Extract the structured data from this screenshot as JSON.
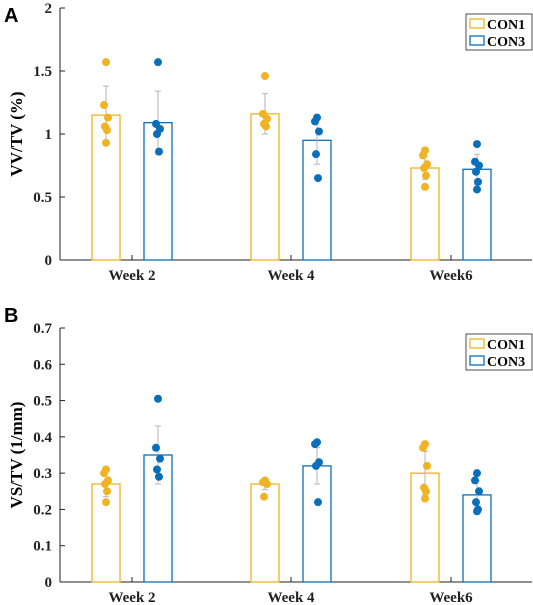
{
  "chart_data": [
    {
      "panel": "A",
      "type": "bar",
      "ylabel": "VV/TV (%)",
      "xlabel": "",
      "title": "",
      "categories": [
        "Week 2",
        "Week 4",
        "Week6"
      ],
      "ylim": [
        0,
        2
      ],
      "yticks": [
        0,
        0.5,
        1,
        1.5,
        2
      ],
      "ytick_labels": [
        "0",
        "0.5",
        "1",
        "1.5",
        "2"
      ],
      "legend_position": "top-right",
      "series": [
        {
          "name": "CON1",
          "color": "#F0B323",
          "values": [
            1.15,
            1.16,
            0.73
          ],
          "errors": [
            0.23,
            0.16,
            0.09
          ],
          "points": [
            [
              1.57,
              1.23,
              1.13,
              1.06,
              1.03,
              0.93
            ],
            [
              1.46,
              1.16,
              1.12,
              1.08,
              1.06
            ],
            [
              0.87,
              0.83,
              0.76,
              0.73,
              0.67,
              0.58
            ]
          ]
        },
        {
          "name": "CON3",
          "color": "#0A6FBB",
          "values": [
            1.09,
            0.95,
            0.72
          ],
          "errors": [
            0.25,
            0.19,
            0.12
          ],
          "points": [
            [
              1.57,
              1.08,
              1.04,
              1.0,
              0.86
            ],
            [
              1.13,
              1.1,
              1.02,
              0.84,
              0.65
            ],
            [
              0.92,
              0.78,
              0.75,
              0.7,
              0.62,
              0.56
            ]
          ]
        }
      ]
    },
    {
      "panel": "B",
      "type": "bar",
      "ylabel": "VS/TV (1/mm)",
      "xlabel": "",
      "title": "",
      "categories": [
        "Week 2",
        "Week 4",
        "Week6"
      ],
      "ylim": [
        0,
        0.7
      ],
      "yticks": [
        0,
        0.1,
        0.2,
        0.3,
        0.4,
        0.5,
        0.6,
        0.7
      ],
      "ytick_labels": [
        "0",
        "0.1",
        "0.2",
        "0.3",
        "0.4",
        "0.5",
        "0.6",
        "0.7"
      ],
      "legend_position": "top-right",
      "series": [
        {
          "name": "CON1",
          "color": "#F0B323",
          "values": [
            0.27,
            0.27,
            0.3
          ],
          "errors": [
            0.035,
            0.015,
            0.06
          ],
          "points": [
            [
              0.31,
              0.3,
              0.28,
              0.27,
              0.25,
              0.22
            ],
            [
              0.28,
              0.275,
              0.27,
              0.235
            ],
            [
              0.38,
              0.37,
              0.32,
              0.26,
              0.25,
              0.23
            ]
          ]
        },
        {
          "name": "CON3",
          "color": "#0A6FBB",
          "values": [
            0.35,
            0.32,
            0.24
          ],
          "errors": [
            0.08,
            0.05,
            0.04
          ],
          "points": [
            [
              0.505,
              0.37,
              0.34,
              0.31,
              0.29
            ],
            [
              0.385,
              0.38,
              0.33,
              0.32,
              0.22
            ],
            [
              0.3,
              0.28,
              0.25,
              0.22,
              0.2,
              0.195
            ]
          ]
        }
      ]
    }
  ]
}
